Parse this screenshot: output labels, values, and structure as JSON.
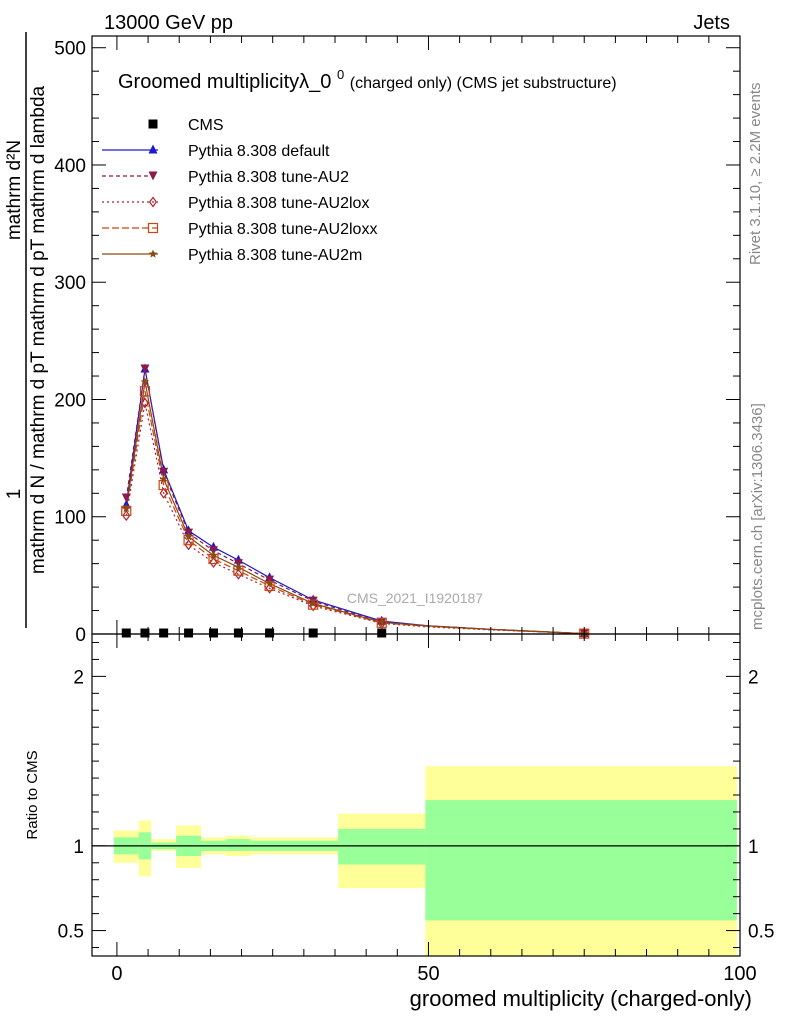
{
  "header": {
    "left": "13000 GeV pp",
    "right": "Jets"
  },
  "side_labels": {
    "rivet": "Rivet 3.1.10, ≥ 2.2M events",
    "mcplots": "mcplots.cern.ch [arXiv:1306.3436]"
  },
  "watermark": "CMS_2021_I1920187",
  "chart_data": [
    {
      "type": "line",
      "title_main": "Groomed multiplicityλ_0",
      "title_sup": "0",
      "title_small": " (charged only) (CMS jet substructure)",
      "ylabel_num": "mathrm d²N",
      "ylabel_den": "mathrm d p₃ mathrm d lambda",
      "ylabel_prefix": "1",
      "ylabel_pre_den": "mathrm d N / mathrm d p₃",
      "ylabel_full_top": "mathrm d²N",
      "ylabel_full_bottom": "mathrm d N / mathrm d pT mathrm d pT mathrm d lambda",
      "xlim": [
        -4,
        100
      ],
      "ylim": [
        0,
        510
      ],
      "yticks": [
        0,
        100,
        200,
        300,
        400,
        500
      ],
      "ytick_labels": [
        "0",
        "100",
        "200",
        "300",
        "400",
        "500"
      ],
      "legend_position": "top-left",
      "series": [
        {
          "name": "CMS",
          "color": "#000000",
          "marker": "square",
          "x": [
            1.5,
            4.5,
            7.5,
            11.5,
            15.5,
            19.5,
            24.5,
            31.5,
            42.5
          ],
          "y": [
            0.5,
            0.5,
            0.5,
            0.5,
            0.5,
            0.5,
            0.5,
            0.5,
            0.5
          ]
        },
        {
          "name": "Pythia 8.308 default",
          "color": "#1a1acc",
          "marker": "triangle-up",
          "dash": "",
          "x": [
            1.5,
            4.5,
            7.5,
            11.5,
            15.5,
            19.5,
            24.5,
            31.5,
            42.5,
            50,
            60,
            75
          ],
          "y": [
            110,
            226,
            140,
            88,
            74,
            63,
            48,
            29,
            11,
            7,
            4,
            0.3
          ]
        },
        {
          "name": "Pythia 8.308 tune-AU2",
          "color": "#8b1a4a",
          "marker": "triangle-down",
          "dash": "4,3",
          "x": [
            1.5,
            4.5,
            7.5,
            11.5,
            15.5,
            19.5,
            24.5,
            31.5,
            42.5,
            50,
            60,
            75
          ],
          "y": [
            116,
            226,
            138,
            86,
            71,
            60,
            46,
            28,
            10,
            7,
            4,
            0.3
          ]
        },
        {
          "name": "Pythia 8.308 tune-AU2lox",
          "color": "#aa2233",
          "marker": "diamond",
          "dash": "2,3",
          "x": [
            1.5,
            4.5,
            7.5,
            11.5,
            15.5,
            19.5,
            24.5,
            31.5,
            42.5,
            50,
            60,
            75
          ],
          "y": [
            101,
            197,
            120,
            76,
            61,
            51,
            39,
            24,
            9,
            6,
            3.5,
            0.3
          ]
        },
        {
          "name": "Pythia 8.308 tune-AU2loxx",
          "color": "#cc4411",
          "marker": "square-open",
          "dash": "7,3",
          "x": [
            1.5,
            4.5,
            7.5,
            11.5,
            15.5,
            19.5,
            24.5,
            31.5,
            42.5,
            50,
            60,
            75
          ],
          "y": [
            105,
            207,
            127,
            80,
            64,
            54,
            41,
            25,
            9.5,
            6.5,
            3.8,
            0.3
          ]
        },
        {
          "name": "Pythia 8.308 tune-AU2m",
          "color": "#8b4a11",
          "marker": "star",
          "dash": "",
          "x": [
            1.5,
            4.5,
            7.5,
            11.5,
            15.5,
            19.5,
            24.5,
            31.5,
            42.5,
            50,
            60,
            75
          ],
          "y": [
            107,
            215,
            132,
            83,
            67,
            57,
            43,
            26,
            10,
            6.8,
            4,
            0.3
          ]
        }
      ]
    },
    {
      "type": "area",
      "ylabel": "Ratio to CMS",
      "xlabel": "groomed multiplicity (charged-only)",
      "xlim": [
        -4,
        100
      ],
      "ylim": [
        0.35,
        2.25
      ],
      "yticks": [
        0.5,
        1,
        2
      ],
      "ytick_labels": [
        "0.5",
        "1",
        "2"
      ],
      "xticks": [
        0,
        50,
        100
      ],
      "xtick_labels": [
        "0",
        "50",
        "100"
      ],
      "bands": [
        {
          "x0": -0.5,
          "x1": 3.5,
          "inner": [
            0.95,
            1.05
          ],
          "outer": [
            0.9,
            1.09
          ]
        },
        {
          "x0": 3.5,
          "x1": 5.5,
          "inner": [
            0.92,
            1.08
          ],
          "outer": [
            0.82,
            1.15
          ]
        },
        {
          "x0": 5.5,
          "x1": 9.5,
          "inner": [
            0.98,
            1.02
          ],
          "outer": [
            0.97,
            1.04
          ]
        },
        {
          "x0": 9.5,
          "x1": 13.5,
          "inner": [
            0.94,
            1.06
          ],
          "outer": [
            0.87,
            1.12
          ]
        },
        {
          "x0": 13.5,
          "x1": 17.5,
          "inner": [
            0.97,
            1.03
          ],
          "outer": [
            0.95,
            1.05
          ]
        },
        {
          "x0": 17.5,
          "x1": 21.5,
          "inner": [
            0.97,
            1.04
          ],
          "outer": [
            0.94,
            1.06
          ]
        },
        {
          "x0": 21.5,
          "x1": 35.5,
          "inner": [
            0.97,
            1.03
          ],
          "outer": [
            0.95,
            1.05
          ]
        },
        {
          "x0": 35.5,
          "x1": 49.5,
          "inner": [
            0.89,
            1.1
          ],
          "outer": [
            0.75,
            1.19
          ]
        },
        {
          "x0": 49.5,
          "x1": 99.5,
          "inner": [
            0.56,
            1.27
          ],
          "outer": [
            0.35,
            1.47
          ]
        }
      ],
      "inner_color": "#99ff99",
      "outer_color": "#ffff99"
    }
  ]
}
